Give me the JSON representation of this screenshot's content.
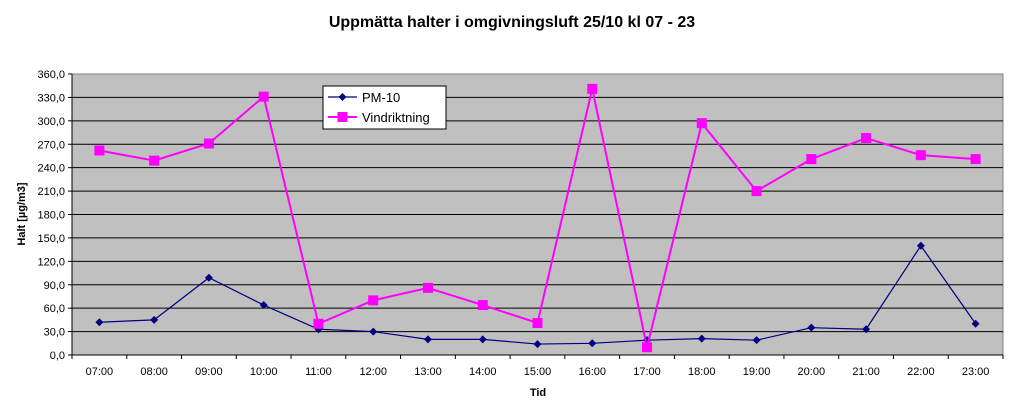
{
  "chart_data": {
    "type": "line",
    "title": "Uppmätta halter i omgivningsluft 25/10 kl 07 - 23",
    "xlabel": "Tid",
    "ylabel": "Halt [µg/m3]",
    "ylim": [
      0,
      360
    ],
    "yticks": [
      "0,0",
      "30,0",
      "60,0",
      "90,0",
      "120,0",
      "150,0",
      "180,0",
      "210,0",
      "240,0",
      "270,0",
      "300,0",
      "330,0",
      "360,0"
    ],
    "categories": [
      "07:00",
      "08:00",
      "09:00",
      "10:00",
      "11:00",
      "12:00",
      "13:00",
      "14:00",
      "15:00",
      "16:00",
      "17:00",
      "18:00",
      "19:00",
      "20:00",
      "21:00",
      "22:00",
      "23:00"
    ],
    "grid": true,
    "legend_position": "top-left",
    "plot_background": "#c0c0c0",
    "series": [
      {
        "name": "PM-10",
        "color": "#000080",
        "marker": "diamond",
        "values": [
          42,
          45,
          99,
          64,
          33,
          30,
          20,
          20,
          14,
          15,
          19,
          21,
          19,
          35,
          33,
          140,
          40
        ]
      },
      {
        "name": "Vindriktning",
        "color": "#ff00ff",
        "marker": "square",
        "values": [
          262,
          249,
          271,
          331,
          40,
          70,
          86,
          64,
          41,
          341,
          10,
          297,
          210,
          251,
          278,
          256,
          251
        ]
      }
    ]
  }
}
